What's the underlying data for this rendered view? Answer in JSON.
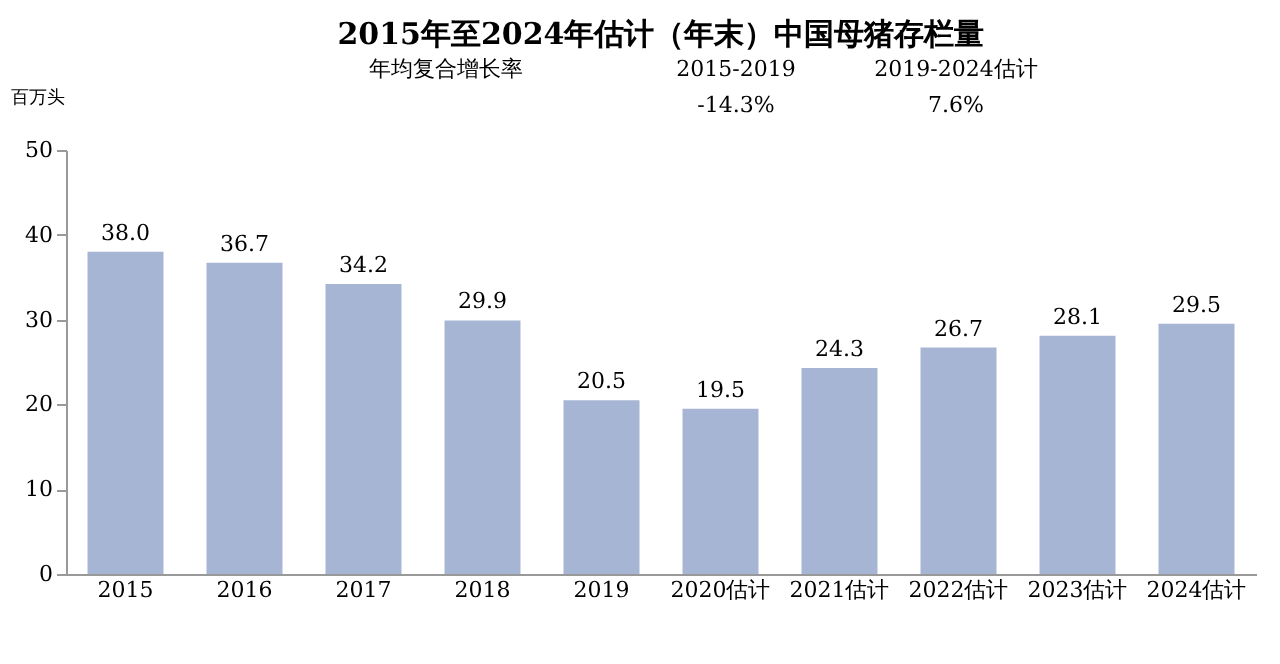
{
  "chart_data": {
    "type": "bar",
    "title": "2015年至2024年估计（年末）中国母猪存栏量",
    "ylabel": "百万头",
    "categories": [
      "2015",
      "2016",
      "2017",
      "2018",
      "2019",
      "2020估计",
      "2021估计",
      "2022估计",
      "2023估计",
      "2024估计"
    ],
    "values": [
      38.0,
      36.7,
      34.2,
      29.9,
      20.5,
      19.5,
      24.3,
      26.7,
      28.1,
      29.5
    ],
    "value_labels": [
      "38.0",
      "36.7",
      "34.2",
      "29.9",
      "20.5",
      "19.5",
      "24.3",
      "26.7",
      "28.1",
      "29.5"
    ],
    "color": "#a7b5d5",
    "ylim": [
      0,
      50
    ],
    "yticks": [
      0,
      10,
      20,
      30,
      40,
      50
    ],
    "grid": false,
    "data_labels": true,
    "annotations": [
      "年均复合增长率",
      "2015-2019",
      "-14.3%",
      "2019-2024估计",
      "7.6%"
    ]
  }
}
